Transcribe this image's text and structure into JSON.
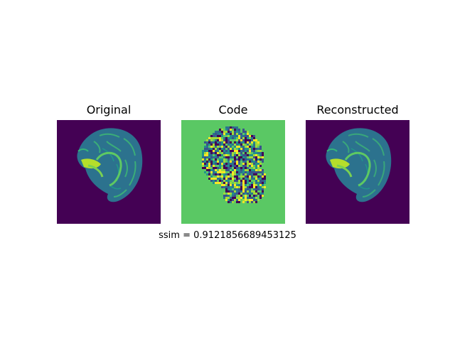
{
  "panels": [
    {
      "title": "Original",
      "image": "mri-brain-slice-sagittal"
    },
    {
      "title": "Code",
      "image": "latent-code-map"
    },
    {
      "title": "Reconstructed",
      "image": "mri-brain-slice-sagittal-reconstructed"
    }
  ],
  "metric": {
    "text": "ssim = 0.9121856689453125",
    "name": "ssim",
    "value": 0.9121856689453125
  },
  "colors": {
    "background_dark": "#440154",
    "tissue_dark": "#26828e",
    "tissue_mid": "#31688e",
    "tissue_bright": "#35b779",
    "tissue_highlight": "#b5de2b",
    "code_background": "#5ac864",
    "code_cells": [
      "#440154",
      "#3b528b",
      "#21918c",
      "#2c728e",
      "#5ec962",
      "#fde725",
      "#a0da39"
    ]
  }
}
